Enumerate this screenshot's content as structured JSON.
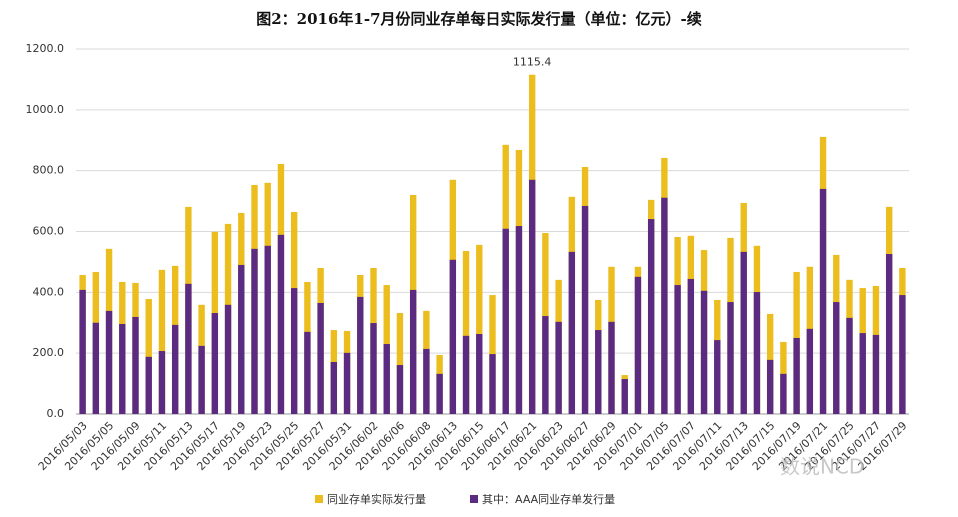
{
  "chart_data": {
    "type": "bar",
    "title": "图2：2016年1-7月份同业存单每日实际发行量（单位：亿元）-续",
    "categories": [
      "2016/05/03",
      null,
      "2016/05/05",
      null,
      "2016/05/09",
      null,
      "2016/05/11",
      null,
      "2016/05/13",
      null,
      "2016/05/17",
      null,
      "2016/05/19",
      null,
      "2016/05/23",
      null,
      "2016/05/25",
      null,
      "2016/05/27",
      null,
      "2016/05/31",
      null,
      "2016/06/02",
      null,
      "2016/06/06",
      null,
      "2016/06/08",
      null,
      "2016/06/13",
      null,
      "2016/06/15",
      null,
      "2016/06/17",
      null,
      "2016/06/21",
      null,
      "2016/06/23",
      null,
      "2016/06/27",
      null,
      "2016/06/29",
      null,
      "2016/07/01",
      null,
      "2016/07/05",
      null,
      "2016/07/07",
      null,
      "2016/07/11",
      null,
      "2016/07/13",
      null,
      "2016/07/15",
      null,
      "2016/07/19",
      null,
      "2016/07/21",
      null,
      "2016/07/25",
      null,
      "2016/07/27",
      null,
      "2016/07/29"
    ],
    "series": [
      {
        "name": "同业存单实际发行量",
        "color": "#ebbd1e",
        "values": [
          457,
          467,
          543,
          434,
          431,
          378,
          474,
          487,
          681,
          359,
          599,
          625,
          661,
          753,
          760,
          822,
          664,
          434,
          480,
          276,
          273,
          457,
          480,
          424,
          332,
          720,
          339,
          194,
          770,
          536,
          556,
          391,
          885,
          868,
          1115.4,
          595,
          441,
          714,
          812,
          375,
          484,
          128,
          484,
          704,
          842,
          582,
          586,
          539,
          375,
          579,
          694,
          553,
          329,
          237,
          467,
          484,
          911,
          523,
          441,
          414,
          421,
          681,
          480
        ]
      },
      {
        "name": "其中：AAA同业存单发行量",
        "color": "#5b2b82",
        "values": [
          408,
          300,
          339,
          296,
          319,
          188,
          207,
          293,
          428,
          224,
          332,
          359,
          490,
          543,
          553,
          589,
          414,
          270,
          365,
          171,
          201,
          385,
          299,
          230,
          161,
          408,
          214,
          132,
          507,
          257,
          263,
          197,
          609,
          618,
          770,
          322,
          303,
          533,
          684,
          276,
          303,
          115,
          451,
          641,
          711,
          424,
          444,
          405,
          243,
          368,
          533,
          401,
          178,
          132,
          250,
          280,
          740,
          368,
          316,
          266,
          260,
          526,
          391
        ]
      }
    ],
    "ylim": [
      0,
      1200
    ],
    "yticks": [
      {
        "value": 0,
        "label": "0.0"
      },
      {
        "value": 200,
        "label": "200.0"
      },
      {
        "value": 400,
        "label": "400.0"
      },
      {
        "value": 600,
        "label": "600.0"
      },
      {
        "value": 800,
        "label": "800.0"
      },
      {
        "value": 1000,
        "label": "1000.0"
      },
      {
        "value": 1200,
        "label": "1200.0"
      }
    ],
    "grid": true,
    "data_label_index": 34,
    "legend": "bottom",
    "watermark": "数说NCD"
  }
}
